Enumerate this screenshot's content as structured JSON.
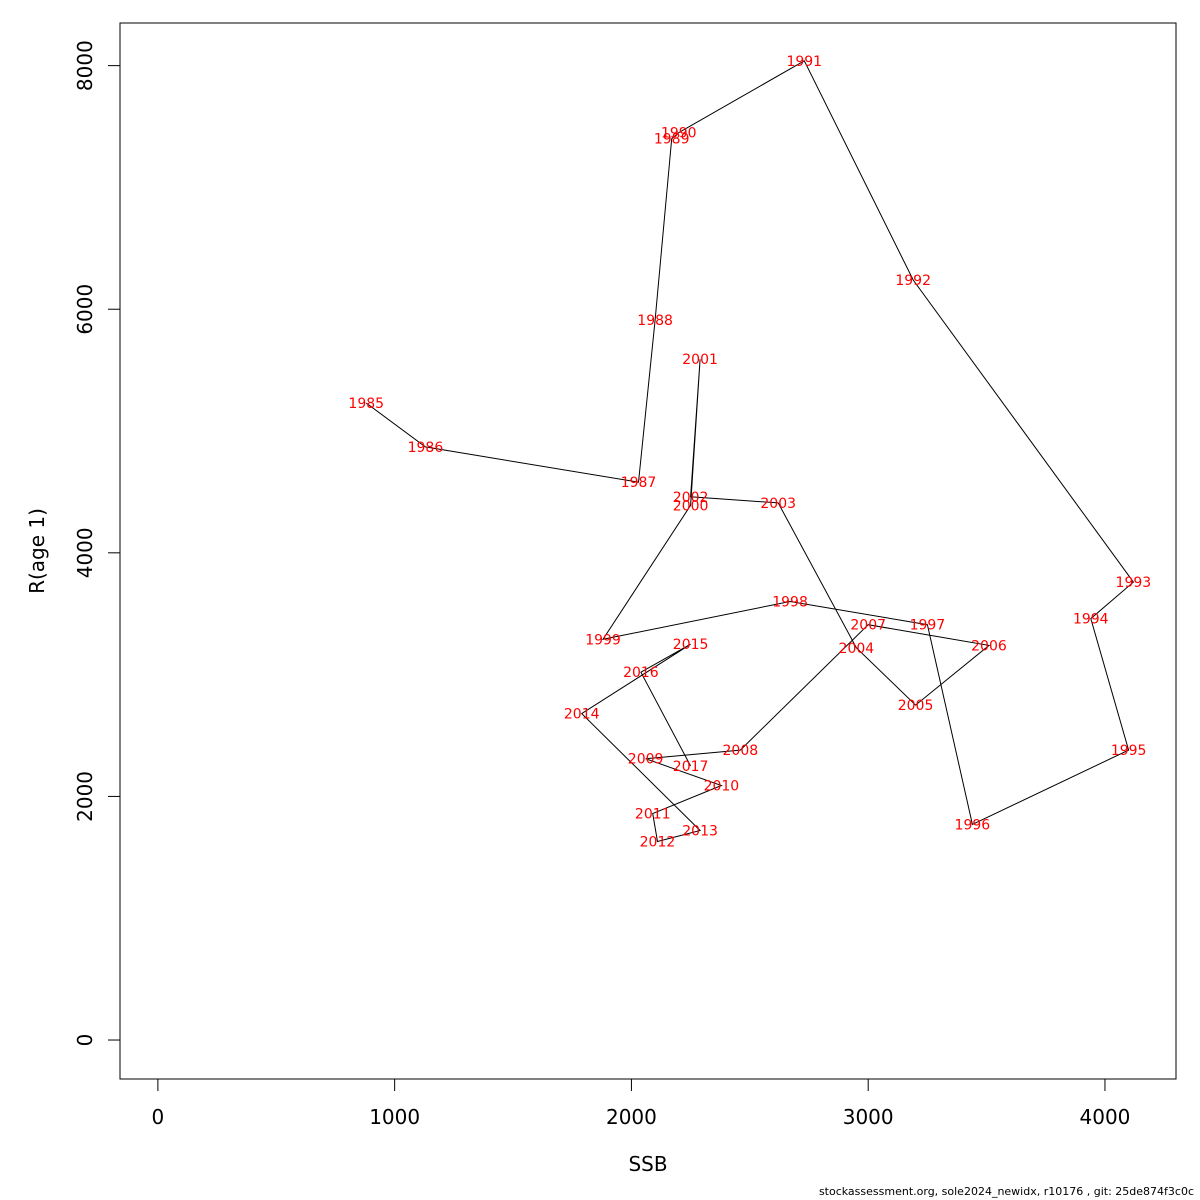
{
  "chart_data": {
    "type": "line",
    "xlabel": "SSB",
    "ylabel": "R(age 1)",
    "xlim": [
      -160,
      4300
    ],
    "ylim": [
      -320,
      8350
    ],
    "xticks": [
      0,
      1000,
      2000,
      3000,
      4000
    ],
    "yticks": [
      0,
      2000,
      4000,
      6000,
      8000
    ],
    "grid": false,
    "line_color": "#000000",
    "label_color": "#ff0000",
    "points": [
      {
        "label": "1985",
        "x": 880,
        "y": 5230
      },
      {
        "label": "1986",
        "x": 1130,
        "y": 4870
      },
      {
        "label": "1987",
        "x": 2030,
        "y": 4580
      },
      {
        "label": "1988",
        "x": 2100,
        "y": 5910
      },
      {
        "label": "1989",
        "x": 2170,
        "y": 7400
      },
      {
        "label": "1990",
        "x": 2200,
        "y": 7450
      },
      {
        "label": "1991",
        "x": 2730,
        "y": 8040
      },
      {
        "label": "1992",
        "x": 3190,
        "y": 6240
      },
      {
        "label": "1993",
        "x": 4120,
        "y": 3760
      },
      {
        "label": "1994",
        "x": 3940,
        "y": 3460
      },
      {
        "label": "1995",
        "x": 4100,
        "y": 2380
      },
      {
        "label": "1996",
        "x": 3440,
        "y": 1770
      },
      {
        "label": "1997",
        "x": 3250,
        "y": 3410
      },
      {
        "label": "1998",
        "x": 2670,
        "y": 3600
      },
      {
        "label": "1999",
        "x": 1880,
        "y": 3290
      },
      {
        "label": "2000",
        "x": 2250,
        "y": 4390
      },
      {
        "label": "2001",
        "x": 2290,
        "y": 5590
      },
      {
        "label": "2002",
        "x": 2250,
        "y": 4460
      },
      {
        "label": "2003",
        "x": 2620,
        "y": 4410
      },
      {
        "label": "2004",
        "x": 2950,
        "y": 3220
      },
      {
        "label": "2005",
        "x": 3200,
        "y": 2750
      },
      {
        "label": "2006",
        "x": 3510,
        "y": 3240
      },
      {
        "label": "2007",
        "x": 3000,
        "y": 3410
      },
      {
        "label": "2008",
        "x": 2460,
        "y": 2380
      },
      {
        "label": "2009",
        "x": 2060,
        "y": 2310
      },
      {
        "label": "2010",
        "x": 2380,
        "y": 2090
      },
      {
        "label": "2011",
        "x": 2090,
        "y": 1860
      },
      {
        "label": "2012",
        "x": 2110,
        "y": 1630
      },
      {
        "label": "2013",
        "x": 2290,
        "y": 1720
      },
      {
        "label": "2014",
        "x": 1790,
        "y": 2680
      },
      {
        "label": "2015",
        "x": 2250,
        "y": 3250
      },
      {
        "label": "2016",
        "x": 2040,
        "y": 3020
      },
      {
        "label": "2017",
        "x": 2250,
        "y": 2250
      }
    ]
  },
  "footer": {
    "text": "stockassessment.org, sole2024_newidx, r10176 , git: 25de874f3c0c"
  }
}
